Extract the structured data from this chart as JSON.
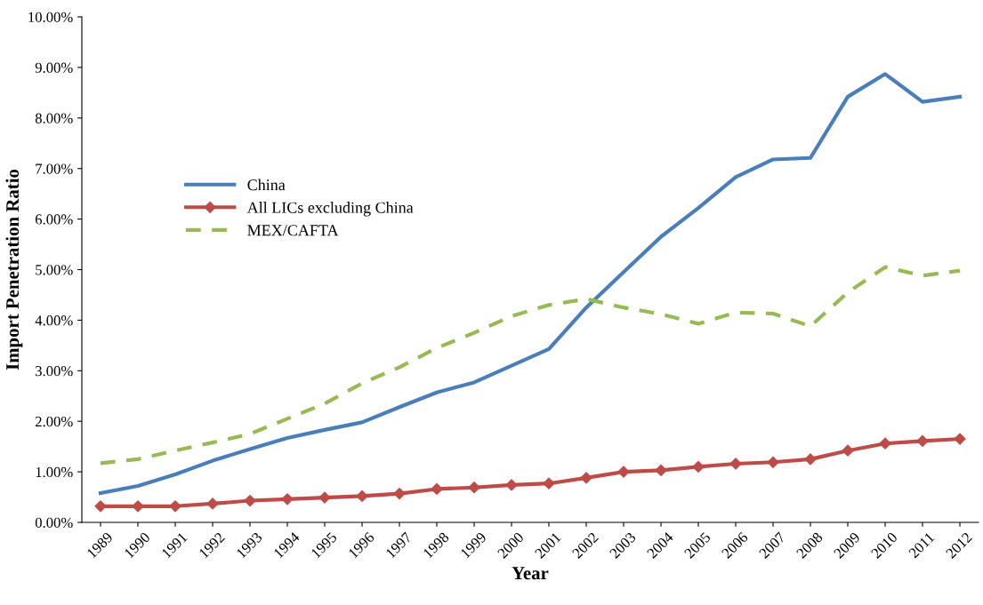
{
  "chart_data": {
    "type": "line",
    "xlabel": "Year",
    "ylabel": "Import Penetration Ratio",
    "categories": [
      "1989",
      "1990",
      "1991",
      "1992",
      "1993",
      "1994",
      "1995",
      "1996",
      "1997",
      "1998",
      "1999",
      "2000",
      "2001",
      "2002",
      "2003",
      "2004",
      "2005",
      "2006",
      "2007",
      "2008",
      "2009",
      "2010",
      "2011",
      "2012"
    ],
    "series": [
      {
        "name": "China",
        "color": "#4a7ebb",
        "marker": "none",
        "line_style": "solid",
        "values": [
          0.58,
          0.72,
          0.95,
          1.22,
          1.45,
          1.67,
          1.83,
          1.98,
          2.28,
          2.57,
          2.77,
          3.1,
          3.43,
          4.25,
          4.95,
          5.65,
          6.22,
          6.83,
          7.18,
          7.21,
          8.42,
          8.87,
          8.32,
          8.42
        ]
      },
      {
        "name": "All LICs excluding China",
        "color": "#be4b48",
        "marker": "diamond",
        "line_style": "solid",
        "values": [
          0.32,
          0.32,
          0.32,
          0.37,
          0.43,
          0.46,
          0.49,
          0.52,
          0.57,
          0.66,
          0.69,
          0.74,
          0.77,
          0.88,
          1.0,
          1.03,
          1.1,
          1.16,
          1.19,
          1.25,
          1.42,
          1.56,
          1.61,
          1.65
        ]
      },
      {
        "name": "MEX/CAFTA",
        "color": "#98b954",
        "marker": "none",
        "line_style": "dashed",
        "values": [
          1.17,
          1.25,
          1.42,
          1.58,
          1.75,
          2.05,
          2.35,
          2.75,
          3.07,
          3.45,
          3.75,
          4.08,
          4.3,
          4.42,
          4.25,
          4.12,
          3.93,
          4.15,
          4.13,
          3.88,
          4.55,
          5.05,
          4.88,
          4.98
        ]
      }
    ],
    "ylim": [
      0,
      10
    ],
    "yticks": [
      {
        "value": 0,
        "label": "0.00%"
      },
      {
        "value": 1,
        "label": "1.00%"
      },
      {
        "value": 2,
        "label": "2.00%"
      },
      {
        "value": 3,
        "label": "3.00%"
      },
      {
        "value": 4,
        "label": "4.00%"
      },
      {
        "value": 5,
        "label": "5.00%"
      },
      {
        "value": 6,
        "label": "6.00%"
      },
      {
        "value": 7,
        "label": "7.00%"
      },
      {
        "value": 8,
        "label": "8.00%"
      },
      {
        "value": 9,
        "label": "9.00%"
      },
      {
        "value": 10,
        "label": "10.00%"
      }
    ],
    "grid": false,
    "legend": "left"
  }
}
